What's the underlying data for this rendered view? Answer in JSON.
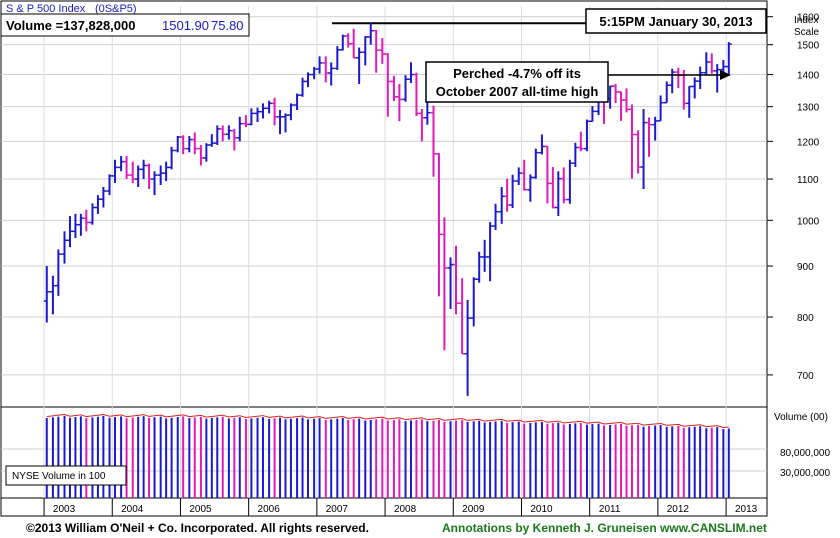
{
  "header": {
    "index_name": "S & P 500 Index",
    "symbol": "(0S&P5)",
    "volume_text": "Volume =137,828,000",
    "price": "1501.90",
    "change": "75.80",
    "datetime": "5:15PM January 30, 2013",
    "axis_title_line1": "Index",
    "axis_title_line2": "Scale"
  },
  "annotation": {
    "line1": "Perched -4.7% off its",
    "line2": "October 2007 all-time high"
  },
  "footer": {
    "copyright": "©2013 William O'Neil + Co. Incorporated. All rights reserved.",
    "annotations_credit": "Annotations by Kenneth J. Gruneisen www.CANSLIM.net"
  },
  "volume_panel": {
    "label": "NYSE Volume in 100",
    "axis_title": "Volume (00)",
    "ticks": [
      "80,000,000",
      "30,000,000"
    ]
  },
  "colors": {
    "up_bar": "#1a1acc",
    "down_bar": "#e01ab8",
    "volume_ma": "#e02020",
    "header_price": "#1a1acc",
    "footer_green": "#1a7a1a"
  },
  "chart_data": {
    "type": "bar",
    "description_type": "weekly-style OHLC price bars with volume bars",
    "x_tick_labels": [
      "2003",
      "2004",
      "2005",
      "2006",
      "2007",
      "2008",
      "2009",
      "2010",
      "2011",
      "2012",
      "2013"
    ],
    "y_tick_labels": [
      "700",
      "800",
      "900",
      "1000",
      "1100",
      "1200",
      "1300",
      "1400",
      "1500",
      "1600"
    ],
    "y_scale": "log",
    "ylim": [
      650,
      1640
    ],
    "x_range": [
      2002.93,
      2013.12
    ],
    "reference_line_value": 1576,
    "last_close": 1501.9,
    "series": [
      {
        "t": 2003.0,
        "o": 830,
        "h": 900,
        "l": 790,
        "c": 848
      },
      {
        "t": 2003.09,
        "o": 848,
        "h": 880,
        "l": 805,
        "c": 860
      },
      {
        "t": 2003.17,
        "o": 860,
        "h": 935,
        "l": 840,
        "c": 925
      },
      {
        "t": 2003.26,
        "o": 925,
        "h": 975,
        "l": 905,
        "c": 955
      },
      {
        "t": 2003.34,
        "o": 955,
        "h": 1010,
        "l": 940,
        "c": 975
      },
      {
        "t": 2003.42,
        "o": 975,
        "h": 1015,
        "l": 960,
        "c": 990
      },
      {
        "t": 2003.5,
        "o": 990,
        "h": 1015,
        "l": 965,
        "c": 1005
      },
      {
        "t": 2003.58,
        "o": 1005,
        "h": 1025,
        "l": 975,
        "c": 995
      },
      {
        "t": 2003.67,
        "o": 995,
        "h": 1040,
        "l": 990,
        "c": 1030
      },
      {
        "t": 2003.75,
        "o": 1030,
        "h": 1060,
        "l": 1015,
        "c": 1050
      },
      {
        "t": 2003.83,
        "o": 1050,
        "h": 1080,
        "l": 1030,
        "c": 1070
      },
      {
        "t": 2003.92,
        "o": 1070,
        "h": 1112,
        "l": 1060,
        "c": 1108
      },
      {
        "t": 2004.0,
        "o": 1108,
        "h": 1150,
        "l": 1090,
        "c": 1130
      },
      {
        "t": 2004.09,
        "o": 1130,
        "h": 1160,
        "l": 1120,
        "c": 1145
      },
      {
        "t": 2004.17,
        "o": 1145,
        "h": 1160,
        "l": 1100,
        "c": 1110
      },
      {
        "t": 2004.26,
        "o": 1110,
        "h": 1145,
        "l": 1090,
        "c": 1100
      },
      {
        "t": 2004.34,
        "o": 1100,
        "h": 1135,
        "l": 1080,
        "c": 1125
      },
      {
        "t": 2004.42,
        "o": 1125,
        "h": 1150,
        "l": 1100,
        "c": 1135
      },
      {
        "t": 2004.5,
        "o": 1135,
        "h": 1140,
        "l": 1075,
        "c": 1100
      },
      {
        "t": 2004.58,
        "o": 1100,
        "h": 1120,
        "l": 1060,
        "c": 1110
      },
      {
        "t": 2004.67,
        "o": 1110,
        "h": 1135,
        "l": 1085,
        "c": 1115
      },
      {
        "t": 2004.75,
        "o": 1115,
        "h": 1145,
        "l": 1095,
        "c": 1130
      },
      {
        "t": 2004.83,
        "o": 1130,
        "h": 1185,
        "l": 1125,
        "c": 1175
      },
      {
        "t": 2004.92,
        "o": 1175,
        "h": 1215,
        "l": 1170,
        "c": 1212
      },
      {
        "t": 2005.0,
        "o": 1212,
        "h": 1217,
        "l": 1165,
        "c": 1180
      },
      {
        "t": 2005.09,
        "o": 1180,
        "h": 1215,
        "l": 1170,
        "c": 1205
      },
      {
        "t": 2005.17,
        "o": 1205,
        "h": 1225,
        "l": 1165,
        "c": 1180
      },
      {
        "t": 2005.26,
        "o": 1180,
        "h": 1190,
        "l": 1135,
        "c": 1155
      },
      {
        "t": 2005.34,
        "o": 1155,
        "h": 1195,
        "l": 1145,
        "c": 1190
      },
      {
        "t": 2005.42,
        "o": 1190,
        "h": 1220,
        "l": 1185,
        "c": 1195
      },
      {
        "t": 2005.5,
        "o": 1195,
        "h": 1245,
        "l": 1190,
        "c": 1235
      },
      {
        "t": 2005.58,
        "o": 1235,
        "h": 1245,
        "l": 1200,
        "c": 1220
      },
      {
        "t": 2005.67,
        "o": 1220,
        "h": 1245,
        "l": 1205,
        "c": 1230
      },
      {
        "t": 2005.75,
        "o": 1230,
        "h": 1235,
        "l": 1175,
        "c": 1210
      },
      {
        "t": 2005.83,
        "o": 1210,
        "h": 1270,
        "l": 1200,
        "c": 1250
      },
      {
        "t": 2005.92,
        "o": 1250,
        "h": 1275,
        "l": 1240,
        "c": 1248
      },
      {
        "t": 2006.0,
        "o": 1248,
        "h": 1295,
        "l": 1245,
        "c": 1280
      },
      {
        "t": 2006.09,
        "o": 1280,
        "h": 1297,
        "l": 1255,
        "c": 1285
      },
      {
        "t": 2006.17,
        "o": 1285,
        "h": 1310,
        "l": 1265,
        "c": 1295
      },
      {
        "t": 2006.26,
        "o": 1295,
        "h": 1318,
        "l": 1280,
        "c": 1310
      },
      {
        "t": 2006.34,
        "o": 1310,
        "h": 1327,
        "l": 1245,
        "c": 1270
      },
      {
        "t": 2006.42,
        "o": 1270,
        "h": 1290,
        "l": 1220,
        "c": 1270
      },
      {
        "t": 2006.5,
        "o": 1270,
        "h": 1280,
        "l": 1225,
        "c": 1275
      },
      {
        "t": 2006.58,
        "o": 1275,
        "h": 1310,
        "l": 1260,
        "c": 1305
      },
      {
        "t": 2006.67,
        "o": 1305,
        "h": 1340,
        "l": 1290,
        "c": 1335
      },
      {
        "t": 2006.75,
        "o": 1335,
        "h": 1390,
        "l": 1330,
        "c": 1378
      },
      {
        "t": 2006.83,
        "o": 1378,
        "h": 1407,
        "l": 1360,
        "c": 1400
      },
      {
        "t": 2006.92,
        "o": 1400,
        "h": 1425,
        "l": 1385,
        "c": 1418
      },
      {
        "t": 2007.0,
        "o": 1418,
        "h": 1460,
        "l": 1403,
        "c": 1438
      },
      {
        "t": 2007.09,
        "o": 1438,
        "h": 1460,
        "l": 1375,
        "c": 1405
      },
      {
        "t": 2007.17,
        "o": 1405,
        "h": 1440,
        "l": 1365,
        "c": 1420
      },
      {
        "t": 2007.26,
        "o": 1420,
        "h": 1495,
        "l": 1415,
        "c": 1482
      },
      {
        "t": 2007.34,
        "o": 1482,
        "h": 1535,
        "l": 1480,
        "c": 1530
      },
      {
        "t": 2007.42,
        "o": 1530,
        "h": 1540,
        "l": 1490,
        "c": 1503
      },
      {
        "t": 2007.5,
        "o": 1503,
        "h": 1556,
        "l": 1455,
        "c": 1455
      },
      {
        "t": 2007.58,
        "o": 1455,
        "h": 1490,
        "l": 1370,
        "c": 1474
      },
      {
        "t": 2007.67,
        "o": 1474,
        "h": 1530,
        "l": 1430,
        "c": 1527
      },
      {
        "t": 2007.75,
        "o": 1527,
        "h": 1576,
        "l": 1500,
        "c": 1549
      },
      {
        "t": 2007.83,
        "o": 1549,
        "h": 1552,
        "l": 1406,
        "c": 1481
      },
      {
        "t": 2007.92,
        "o": 1481,
        "h": 1523,
        "l": 1435,
        "c": 1468
      },
      {
        "t": 2008.0,
        "o": 1468,
        "h": 1471,
        "l": 1270,
        "c": 1378
      },
      {
        "t": 2008.09,
        "o": 1378,
        "h": 1396,
        "l": 1317,
        "c": 1330
      },
      {
        "t": 2008.17,
        "o": 1330,
        "h": 1370,
        "l": 1257,
        "c": 1322
      },
      {
        "t": 2008.26,
        "o": 1322,
        "h": 1398,
        "l": 1315,
        "c": 1385
      },
      {
        "t": 2008.34,
        "o": 1385,
        "h": 1440,
        "l": 1373,
        "c": 1400
      },
      {
        "t": 2008.42,
        "o": 1400,
        "h": 1406,
        "l": 1272,
        "c": 1280
      },
      {
        "t": 2008.5,
        "o": 1280,
        "h": 1293,
        "l": 1200,
        "c": 1267
      },
      {
        "t": 2008.58,
        "o": 1267,
        "h": 1313,
        "l": 1247,
        "c": 1282
      },
      {
        "t": 2008.67,
        "o": 1282,
        "h": 1303,
        "l": 1106,
        "c": 1166
      },
      {
        "t": 2008.75,
        "o": 1166,
        "h": 1167,
        "l": 839,
        "c": 968
      },
      {
        "t": 2008.83,
        "o": 968,
        "h": 1007,
        "l": 741,
        "c": 896
      },
      {
        "t": 2008.92,
        "o": 896,
        "h": 918,
        "l": 815,
        "c": 903
      },
      {
        "t": 2009.0,
        "o": 903,
        "h": 943,
        "l": 805,
        "c": 826
      },
      {
        "t": 2009.09,
        "o": 826,
        "h": 875,
        "l": 735,
        "c": 735
      },
      {
        "t": 2009.17,
        "o": 735,
        "h": 832,
        "l": 667,
        "c": 798
      },
      {
        "t": 2009.26,
        "o": 798,
        "h": 877,
        "l": 783,
        "c": 873
      },
      {
        "t": 2009.34,
        "o": 873,
        "h": 930,
        "l": 866,
        "c": 919
      },
      {
        "t": 2009.42,
        "o": 919,
        "h": 956,
        "l": 888,
        "c": 919
      },
      {
        "t": 2009.5,
        "o": 919,
        "h": 996,
        "l": 869,
        "c": 987
      },
      {
        "t": 2009.58,
        "o": 987,
        "h": 1039,
        "l": 978,
        "c": 1020
      },
      {
        "t": 2009.67,
        "o": 1020,
        "h": 1080,
        "l": 992,
        "c": 1057
      },
      {
        "t": 2009.75,
        "o": 1057,
        "h": 1101,
        "l": 1020,
        "c": 1036
      },
      {
        "t": 2009.83,
        "o": 1036,
        "h": 1111,
        "l": 1029,
        "c": 1095
      },
      {
        "t": 2009.92,
        "o": 1095,
        "h": 1130,
        "l": 1085,
        "c": 1115
      },
      {
        "t": 2010.0,
        "o": 1115,
        "h": 1150,
        "l": 1071,
        "c": 1073
      },
      {
        "t": 2010.09,
        "o": 1073,
        "h": 1112,
        "l": 1044,
        "c": 1104
      },
      {
        "t": 2010.17,
        "o": 1104,
        "h": 1180,
        "l": 1101,
        "c": 1169
      },
      {
        "t": 2010.26,
        "o": 1169,
        "h": 1219,
        "l": 1164,
        "c": 1186
      },
      {
        "t": 2010.34,
        "o": 1186,
        "h": 1187,
        "l": 1040,
        "c": 1089
      },
      {
        "t": 2010.42,
        "o": 1089,
        "h": 1131,
        "l": 1028,
        "c": 1030
      },
      {
        "t": 2010.5,
        "o": 1030,
        "h": 1120,
        "l": 1010,
        "c": 1101
      },
      {
        "t": 2010.58,
        "o": 1101,
        "h": 1130,
        "l": 1040,
        "c": 1049
      },
      {
        "t": 2010.67,
        "o": 1049,
        "h": 1150,
        "l": 1039,
        "c": 1141
      },
      {
        "t": 2010.75,
        "o": 1141,
        "h": 1196,
        "l": 1131,
        "c": 1183
      },
      {
        "t": 2010.83,
        "o": 1183,
        "h": 1227,
        "l": 1173,
        "c": 1180
      },
      {
        "t": 2010.92,
        "o": 1180,
        "h": 1262,
        "l": 1173,
        "c": 1257
      },
      {
        "t": 2011.0,
        "o": 1257,
        "h": 1302,
        "l": 1256,
        "c": 1286
      },
      {
        "t": 2011.09,
        "o": 1286,
        "h": 1344,
        "l": 1275,
        "c": 1327
      },
      {
        "t": 2011.17,
        "o": 1327,
        "h": 1343,
        "l": 1249,
        "c": 1325
      },
      {
        "t": 2011.26,
        "o": 1325,
        "h": 1364,
        "l": 1294,
        "c": 1363
      },
      {
        "t": 2011.34,
        "o": 1363,
        "h": 1370,
        "l": 1311,
        "c": 1345
      },
      {
        "t": 2011.42,
        "o": 1345,
        "h": 1346,
        "l": 1258,
        "c": 1320
      },
      {
        "t": 2011.5,
        "o": 1320,
        "h": 1356,
        "l": 1283,
        "c": 1292
      },
      {
        "t": 2011.58,
        "o": 1292,
        "h": 1307,
        "l": 1101,
        "c": 1219
      },
      {
        "t": 2011.67,
        "o": 1219,
        "h": 1231,
        "l": 1114,
        "c": 1131
      },
      {
        "t": 2011.75,
        "o": 1131,
        "h": 1293,
        "l": 1075,
        "c": 1253
      },
      {
        "t": 2011.83,
        "o": 1253,
        "h": 1268,
        "l": 1158,
        "c": 1247
      },
      {
        "t": 2011.92,
        "o": 1247,
        "h": 1270,
        "l": 1202,
        "c": 1258
      },
      {
        "t": 2012.0,
        "o": 1258,
        "h": 1334,
        "l": 1258,
        "c": 1312
      },
      {
        "t": 2012.09,
        "o": 1312,
        "h": 1378,
        "l": 1312,
        "c": 1366
      },
      {
        "t": 2012.17,
        "o": 1366,
        "h": 1419,
        "l": 1341,
        "c": 1408
      },
      {
        "t": 2012.26,
        "o": 1408,
        "h": 1422,
        "l": 1357,
        "c": 1398
      },
      {
        "t": 2012.34,
        "o": 1398,
        "h": 1415,
        "l": 1291,
        "c": 1310
      },
      {
        "t": 2012.42,
        "o": 1310,
        "h": 1363,
        "l": 1267,
        "c": 1362
      },
      {
        "t": 2012.5,
        "o": 1362,
        "h": 1391,
        "l": 1325,
        "c": 1379
      },
      {
        "t": 2012.58,
        "o": 1379,
        "h": 1426,
        "l": 1354,
        "c": 1406
      },
      {
        "t": 2012.67,
        "o": 1406,
        "h": 1474,
        "l": 1397,
        "c": 1441
      },
      {
        "t": 2012.75,
        "o": 1441,
        "h": 1470,
        "l": 1403,
        "c": 1412
      },
      {
        "t": 2012.83,
        "o": 1412,
        "h": 1434,
        "l": 1343,
        "c": 1416
      },
      {
        "t": 2012.92,
        "o": 1416,
        "h": 1448,
        "l": 1398,
        "c": 1426
      },
      {
        "t": 2013.0,
        "o": 1426,
        "h": 1509,
        "l": 1402,
        "c": 1502
      }
    ]
  }
}
